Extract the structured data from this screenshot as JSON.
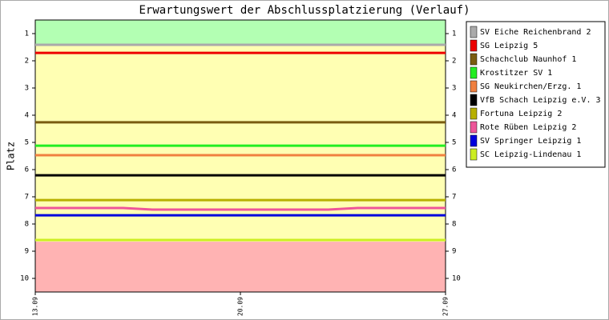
{
  "chart_data": {
    "type": "line",
    "title": "Erwartungswert der Abschlussplatzierung (Verlauf)",
    "y_label": "Platz",
    "categories": [
      "13.09",
      null,
      null,
      null,
      null,
      null,
      null,
      "20.09",
      null,
      null,
      null,
      null,
      null,
      null,
      "27.09"
    ],
    "ylim": [
      10.5,
      0.5
    ],
    "yticks": [
      1,
      2,
      3,
      4,
      5,
      6,
      7,
      8,
      9,
      10
    ],
    "bands": [
      {
        "from": 0.5,
        "to": 1.41,
        "color": "#b3ffb3"
      },
      {
        "from": 1.41,
        "to": 8.65,
        "color": "#ffffb3"
      },
      {
        "from": 8.65,
        "to": 10.5,
        "color": "#ffb3b3"
      }
    ],
    "series": [
      {
        "name": "SV Eiche Reichenbrand 2",
        "color": "#aaaaaa",
        "values": [
          1.41,
          1.41,
          1.41,
          1.41,
          1.41,
          1.41,
          1.41,
          1.41,
          1.41,
          1.41,
          1.41,
          1.41,
          1.41,
          1.41,
          1.41
        ]
      },
      {
        "name": "SG Leipzig 5",
        "color": "#ee0000",
        "values": [
          1.71,
          1.71,
          1.71,
          1.71,
          1.71,
          1.71,
          1.71,
          1.71,
          1.71,
          1.71,
          1.71,
          1.71,
          1.71,
          1.71,
          1.71
        ]
      },
      {
        "name": "Schachclub Naunhof 1",
        "color": "#7a5c10",
        "values": [
          4.26,
          4.26,
          4.26,
          4.26,
          4.26,
          4.26,
          4.26,
          4.26,
          4.26,
          4.26,
          4.26,
          4.26,
          4.26,
          4.26,
          4.26
        ]
      },
      {
        "name": "Krostitzer SV 1",
        "color": "#22ee22",
        "values": [
          5.12,
          5.12,
          5.12,
          5.12,
          5.12,
          5.12,
          5.12,
          5.12,
          5.12,
          5.12,
          5.12,
          5.12,
          5.12,
          5.12,
          5.12
        ]
      },
      {
        "name": "SG Neukirchen/Erzg. 1",
        "color": "#f08040",
        "values": [
          5.47,
          5.47,
          5.47,
          5.47,
          5.47,
          5.47,
          5.47,
          5.47,
          5.47,
          5.47,
          5.47,
          5.47,
          5.47,
          5.47,
          5.47
        ]
      },
      {
        "name": "VfB Schach Leipzig e.V. 3",
        "color": "#000000",
        "values": [
          6.21,
          6.21,
          6.21,
          6.21,
          6.21,
          6.21,
          6.21,
          6.21,
          6.21,
          6.21,
          6.21,
          6.21,
          6.21,
          6.21,
          6.21
        ]
      },
      {
        "name": "Fortuna Leipzig 2",
        "color": "#b8b000",
        "values": [
          7.12,
          7.12,
          7.12,
          7.12,
          7.12,
          7.12,
          7.12,
          7.12,
          7.12,
          7.12,
          7.12,
          7.12,
          7.12,
          7.12,
          7.12
        ]
      },
      {
        "name": "Rote Rüben Leipzig 2",
        "color": "#ee5599",
        "values": [
          7.41,
          7.41,
          7.41,
          7.41,
          7.47,
          7.47,
          7.47,
          7.47,
          7.47,
          7.47,
          7.47,
          7.41,
          7.41,
          7.41,
          7.41
        ]
      },
      {
        "name": "SV Springer Leipzig 1",
        "color": "#0000dd",
        "values": [
          7.68,
          7.68,
          7.68,
          7.68,
          7.68,
          7.68,
          7.68,
          7.68,
          7.68,
          7.68,
          7.68,
          7.68,
          7.68,
          7.68,
          7.68
        ]
      },
      {
        "name": "SC Leipzig-Lindenau 1",
        "color": "#ccee22",
        "values": [
          8.59,
          8.59,
          8.59,
          8.59,
          8.59,
          8.59,
          8.59,
          8.59,
          8.59,
          8.59,
          8.59,
          8.59,
          8.59,
          8.59,
          8.59
        ]
      }
    ]
  }
}
